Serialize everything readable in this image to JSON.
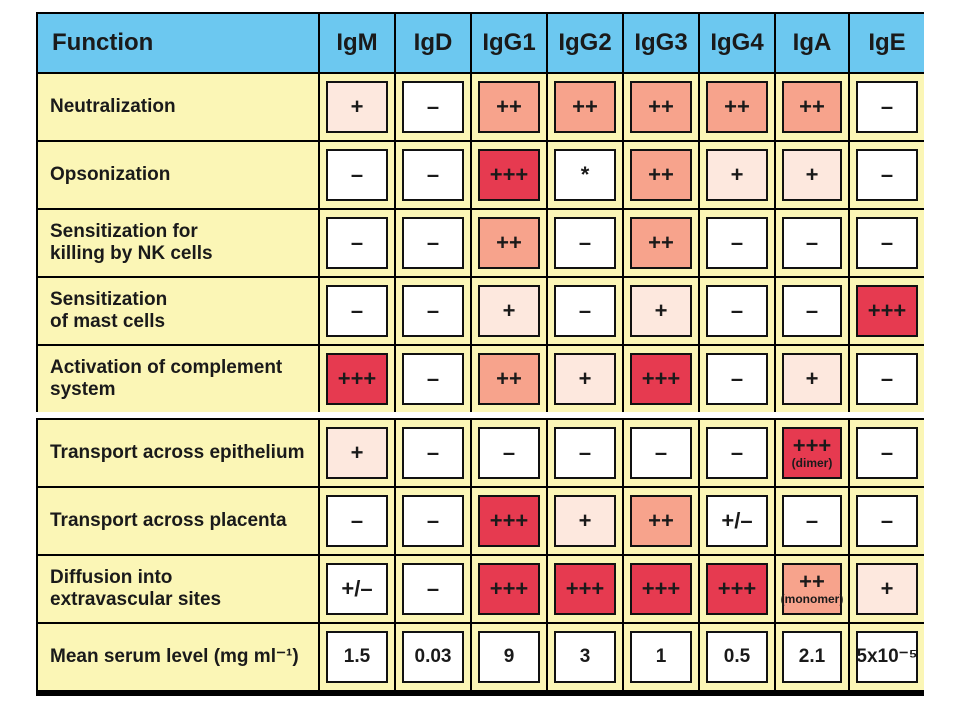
{
  "table": {
    "header": [
      "Function",
      "IgM",
      "IgD",
      "IgG1",
      "IgG2",
      "IgG3",
      "IgG4",
      "IgA",
      "IgE"
    ],
    "rows": [
      {
        "label": "Neutralization",
        "cells": [
          {
            "v": "+",
            "lv": 1
          },
          {
            "v": "–",
            "lv": 0
          },
          {
            "v": "++",
            "lv": 2
          },
          {
            "v": "++",
            "lv": 2
          },
          {
            "v": "++",
            "lv": 2
          },
          {
            "v": "++",
            "lv": 2
          },
          {
            "v": "++",
            "lv": 2
          },
          {
            "v": "–",
            "lv": 0
          }
        ]
      },
      {
        "label": "Opsonization",
        "cells": [
          {
            "v": "–",
            "lv": 0
          },
          {
            "v": "–",
            "lv": 0
          },
          {
            "v": "+++",
            "lv": 3
          },
          {
            "v": "*",
            "lv": 0
          },
          {
            "v": "++",
            "lv": 2
          },
          {
            "v": "+",
            "lv": 1
          },
          {
            "v": "+",
            "lv": 1
          },
          {
            "v": "–",
            "lv": 0
          }
        ]
      },
      {
        "label": "Sensitization for\nkilling by NK cells",
        "cells": [
          {
            "v": "–",
            "lv": 0
          },
          {
            "v": "–",
            "lv": 0
          },
          {
            "v": "++",
            "lv": 2
          },
          {
            "v": "–",
            "lv": 0
          },
          {
            "v": "++",
            "lv": 2
          },
          {
            "v": "–",
            "lv": 0
          },
          {
            "v": "–",
            "lv": 0
          },
          {
            "v": "–",
            "lv": 0
          }
        ]
      },
      {
        "label": "Sensitization\nof mast cells",
        "cells": [
          {
            "v": "–",
            "lv": 0
          },
          {
            "v": "–",
            "lv": 0
          },
          {
            "v": "+",
            "lv": 1
          },
          {
            "v": "–",
            "lv": 0
          },
          {
            "v": "+",
            "lv": 1
          },
          {
            "v": "–",
            "lv": 0
          },
          {
            "v": "–",
            "lv": 0
          },
          {
            "v": "+++",
            "lv": 3
          }
        ]
      },
      {
        "label": "Activation of complement\nsystem",
        "cells": [
          {
            "v": "+++",
            "lv": 3
          },
          {
            "v": "–",
            "lv": 0
          },
          {
            "v": "++",
            "lv": 2
          },
          {
            "v": "+",
            "lv": 1
          },
          {
            "v": "+++",
            "lv": 3
          },
          {
            "v": "–",
            "lv": 0
          },
          {
            "v": "+",
            "lv": 1
          },
          {
            "v": "–",
            "lv": 0
          }
        ]
      },
      {
        "label": "Transport across epithelium",
        "cells": [
          {
            "v": "+",
            "lv": 1
          },
          {
            "v": "–",
            "lv": 0
          },
          {
            "v": "–",
            "lv": 0
          },
          {
            "v": "–",
            "lv": 0
          },
          {
            "v": "–",
            "lv": 0
          },
          {
            "v": "–",
            "lv": 0
          },
          {
            "v": "+++",
            "sub": "(dimer)",
            "lv": 3
          },
          {
            "v": "–",
            "lv": 0
          }
        ]
      },
      {
        "label": "Transport across placenta",
        "cells": [
          {
            "v": "–",
            "lv": 0
          },
          {
            "v": "–",
            "lv": 0
          },
          {
            "v": "+++",
            "lv": 3
          },
          {
            "v": "+",
            "lv": 1
          },
          {
            "v": "++",
            "lv": 2
          },
          {
            "v": "+/–",
            "lv": 0
          },
          {
            "v": "–",
            "lv": 0
          },
          {
            "v": "–",
            "lv": 0
          }
        ]
      },
      {
        "label": "Diffusion into\nextravascular sites",
        "cells": [
          {
            "v": "+/–",
            "lv": 0
          },
          {
            "v": "–",
            "lv": 0
          },
          {
            "v": "+++",
            "lv": 3
          },
          {
            "v": "+++",
            "lv": 3
          },
          {
            "v": "+++",
            "lv": 3
          },
          {
            "v": "+++",
            "lv": 3
          },
          {
            "v": "++",
            "sub": "(monomer)",
            "lv": 2
          },
          {
            "v": "+",
            "lv": 1
          }
        ]
      },
      {
        "label": "Mean serum level (mg ml⁻¹)",
        "cells": [
          {
            "v": "1.5",
            "lv": 4
          },
          {
            "v": "0.03",
            "lv": 4
          },
          {
            "v": "9",
            "lv": 4
          },
          {
            "v": "3",
            "lv": 4
          },
          {
            "v": "1",
            "lv": 4
          },
          {
            "v": "0.5",
            "lv": 4
          },
          {
            "v": "2.1",
            "lv": 4
          },
          {
            "v": "5x10⁻⁵",
            "lv": 4
          }
        ]
      }
    ]
  }
}
